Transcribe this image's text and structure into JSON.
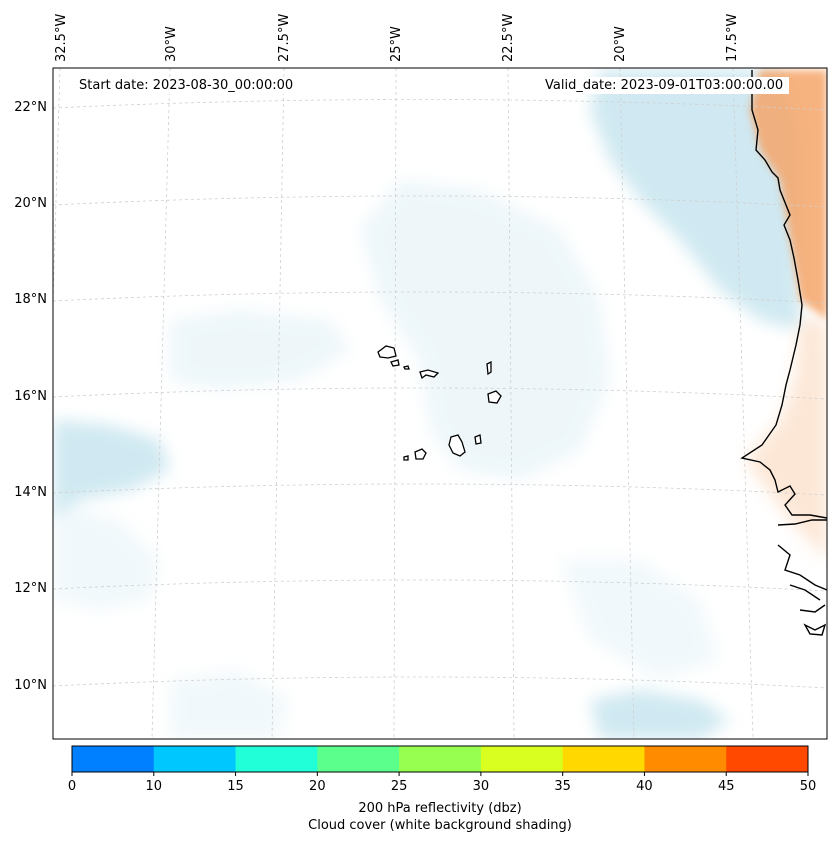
{
  "header": {
    "start_date": "Start date: 2023-08-30_00:00:00",
    "valid_date": "Valid_date: 2023-09-01T03:00:00.00"
  },
  "map": {
    "lon_labels": [
      "32.5°W",
      "30°W",
      "27.5°W",
      "25°W",
      "22.5°W",
      "20°W",
      "17.5°W"
    ],
    "lat_labels": [
      "22°N",
      "20°N",
      "18°N",
      "16°N",
      "14°N",
      "12°N",
      "10°N"
    ],
    "islands": [
      "santo-antao",
      "sao-vicente",
      "santa-luzia",
      "sao-nicolau",
      "sal",
      "boa-vista",
      "brava",
      "fogo",
      "santiago",
      "maio"
    ],
    "colors": {
      "cloud_cover": "#a9d7e6",
      "cloud_light": "#d8edf4",
      "land_reflectivity": "#f5a66b",
      "land_light": "#fbd8bc",
      "coastline": "#000000",
      "grid": "#cfcfcf"
    }
  },
  "colorbar": {
    "ticks": [
      "0",
      "10",
      "15",
      "20",
      "25",
      "30",
      "35",
      "40",
      "45",
      "50"
    ],
    "colors": [
      "#0080ff",
      "#00c8ff",
      "#20ffd8",
      "#5aff8c",
      "#96ff50",
      "#d8ff20",
      "#ffd800",
      "#ff8c00",
      "#ff4800"
    ],
    "title": "200 hPa reflectivity (dbz)",
    "subtitle": "Cloud cover (white background shading)"
  }
}
